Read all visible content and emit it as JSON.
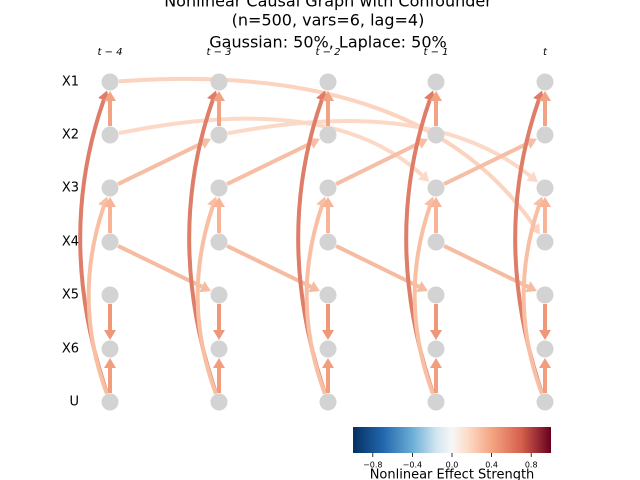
{
  "title": [
    "Nonlinear Causal Graph with Confounder",
    "(n=500, vars=6, lag=4)",
    "Gaussian: 50%, Laplace: 50%"
  ],
  "time_labels": [
    "t − 4",
    "t − 3",
    "t − 2",
    "t − 1",
    "t"
  ],
  "variables": [
    "X1",
    "X2",
    "X3",
    "X4",
    "X5",
    "X6",
    "U"
  ],
  "colorbar": {
    "label": "Nonlinear Effect Strength",
    "range": [
      -1,
      1
    ],
    "ticks": [
      {
        "value": -0.8,
        "label": "−0.8"
      },
      {
        "value": -0.4,
        "label": "−0.4"
      },
      {
        "value": 0,
        "label": "0.0"
      },
      {
        "value": 0.4,
        "label": "0.4"
      },
      {
        "value": 0.8,
        "label": "0.8"
      }
    ]
  }
}
